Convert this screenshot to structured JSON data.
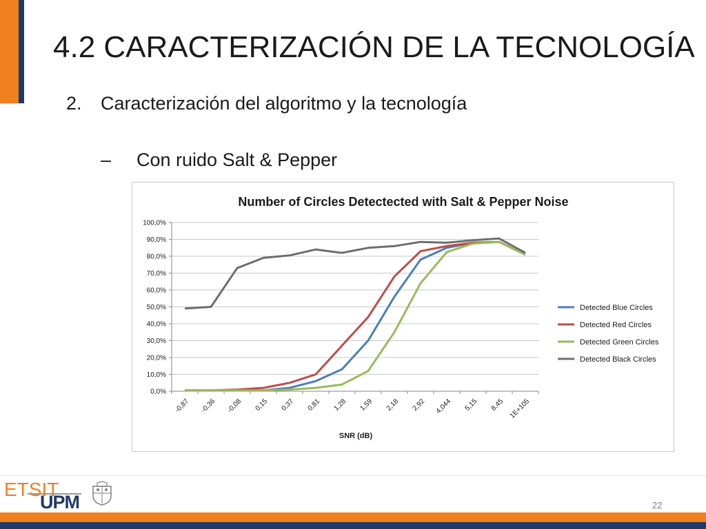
{
  "slide": {
    "title": "4.2   CARACTERIZACIÓN DE LA TECNOLOGÍA",
    "bullet1_num": "2.",
    "bullet1_text": "Caracterización del algoritmo y la tecnología",
    "bullet2_dash": "–",
    "bullet2_text": "Con ruido Salt & Pepper",
    "page_number": "22"
  },
  "footer": {
    "logo_top": "ETSIT",
    "logo_bottom": "UPM"
  },
  "colors": {
    "orange": "#f07f1e",
    "navy": "#1f3a6a",
    "blue": "#4a7ebb",
    "red": "#be4b48",
    "green": "#98bb59",
    "black": "#6d6d6d"
  },
  "chart_data": {
    "type": "line",
    "title": "Number of Circles Detectected with Salt & Pepper Noise",
    "xlabel": "SNR (dB)",
    "ylabel": "",
    "ylim": [
      0,
      100
    ],
    "ytick_labels": [
      "0,0%",
      "10,0%",
      "20,0%",
      "30,0%",
      "40,0%",
      "50,0%",
      "60,0%",
      "70,0%",
      "80,0%",
      "90,0%",
      "100,0%"
    ],
    "categories": [
      "-0,87",
      "-0,36",
      "-0,08",
      "0,15",
      "0,37",
      "0,81",
      "1,28",
      "1,59",
      "2,18",
      "2,92",
      "4,044",
      "5,15",
      "8,45",
      "1E+105"
    ],
    "grid": true,
    "legend_position": "right",
    "series": [
      {
        "name": "Detected Blue Circles",
        "color": "#4a7ebb",
        "values": [
          0.5,
          0.5,
          0.5,
          0.5,
          2,
          6,
          13,
          30,
          56,
          78,
          85,
          88,
          88.5,
          81
        ]
      },
      {
        "name": "Detected Red Circles",
        "color": "#be4b48",
        "values": [
          0.5,
          0.5,
          1,
          2,
          5,
          10,
          27,
          44,
          68,
          83,
          86,
          88,
          88.5,
          81
        ]
      },
      {
        "name": "Detected Green Circles",
        "color": "#98bb59",
        "values": [
          0.5,
          0.5,
          0.5,
          0.5,
          1,
          2,
          4,
          12,
          35,
          64,
          82.5,
          87.5,
          88.5,
          81
        ]
      },
      {
        "name": "Detected Black Circles",
        "color": "#6d6d6d",
        "values": [
          49,
          50,
          73,
          79,
          80.5,
          84,
          82,
          85,
          86,
          88.5,
          88,
          89.5,
          90.5,
          82
        ]
      }
    ]
  }
}
